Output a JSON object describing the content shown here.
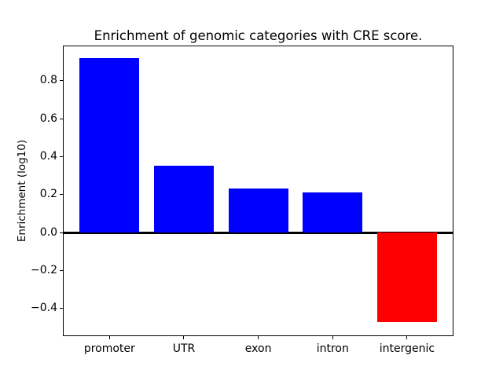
{
  "chart_data": {
    "type": "bar",
    "title": "Enrichment of genomic categories with CRE score.",
    "xlabel": "",
    "ylabel": "Enrichment (log10)",
    "categories": [
      "promoter",
      "UTR",
      "exon",
      "intron",
      "intergenic"
    ],
    "values": [
      0.92,
      0.35,
      0.23,
      0.21,
      -0.47
    ],
    "bar_colors": [
      "#0000ff",
      "#0000ff",
      "#0000ff",
      "#0000ff",
      "#ff0000"
    ],
    "positive_color": "#0000ff",
    "negative_color": "#ff0000",
    "ylim": [
      -0.542,
      0.981
    ],
    "yticks": [
      0.8,
      0.6,
      0.4,
      0.2,
      0.0,
      -0.2,
      -0.4
    ],
    "ytick_labels": [
      "0.8",
      "0.6",
      "0.4",
      "0.2",
      "0.0",
      "−0.2",
      "−0.4"
    ],
    "bar_width_fraction": 0.8,
    "zero_line": {
      "color": "#000000",
      "width": 3
    },
    "grid": false,
    "legend": null,
    "background_color": "#ffffff",
    "axis_color": "#000000"
  }
}
